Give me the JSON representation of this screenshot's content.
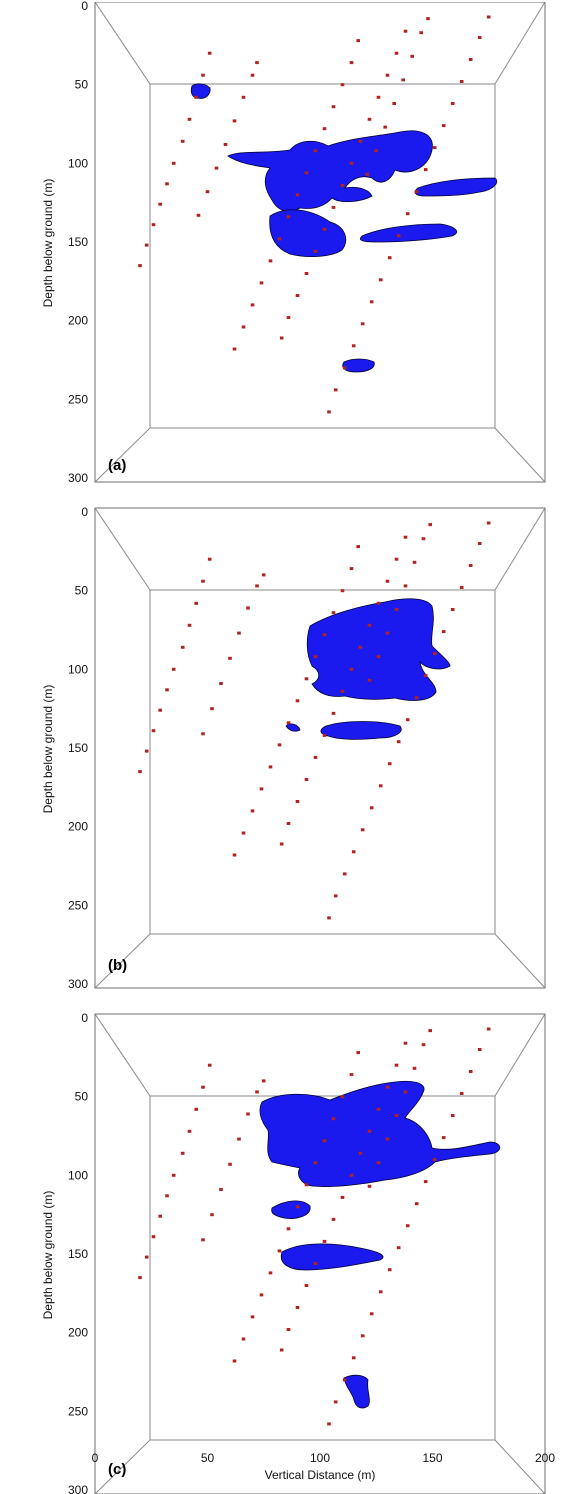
{
  "chart_data": [
    {
      "type": "scatter",
      "panel_label": "(a)",
      "ylabel": "Depth below ground (m)",
      "xlabel": "",
      "ylim": [
        300,
        0
      ],
      "y_ticks": [
        "0",
        "50",
        "100",
        "150",
        "200",
        "250",
        "300"
      ],
      "x_ticks": [],
      "series": [
        {
          "points": [
            [
              20,
              165
            ],
            [
              23,
              152
            ],
            [
              26,
              139
            ],
            [
              29,
              126
            ],
            [
              32,
              113
            ],
            [
              35,
              100
            ],
            [
              39,
              86
            ],
            [
              42,
              72
            ],
            [
              45,
              58
            ],
            [
              48,
              44
            ],
            [
              51,
              30
            ]
          ]
        },
        {
          "points": [
            [
              62,
              218
            ],
            [
              66,
              204
            ],
            [
              70,
              190
            ],
            [
              74,
              176
            ],
            [
              78,
              162
            ],
            [
              82,
              148
            ],
            [
              86,
              134
            ],
            [
              90,
              120
            ],
            [
              94,
              106
            ],
            [
              98,
              92
            ],
            [
              102,
              78
            ],
            [
              106,
              64
            ],
            [
              110,
              50
            ],
            [
              114,
              36
            ],
            [
              117,
              22
            ]
          ]
        },
        {
          "points": [
            [
              83,
              211
            ],
            [
              86,
              198
            ],
            [
              90,
              184
            ],
            [
              94,
              170
            ],
            [
              98,
              156
            ],
            [
              102,
              142
            ],
            [
              106,
              128
            ],
            [
              110,
              114
            ],
            [
              114,
              100
            ],
            [
              118,
              86
            ],
            [
              122,
              72
            ],
            [
              126,
              58
            ],
            [
              130,
              44
            ],
            [
              134,
              30
            ],
            [
              138,
              16
            ]
          ]
        },
        {
          "points": [
            [
              104,
              258
            ],
            [
              107,
              244
            ],
            [
              111,
              230
            ],
            [
              115,
              216
            ],
            [
              119,
              202
            ],
            [
              123,
              188
            ],
            [
              127,
              174
            ],
            [
              131,
              160
            ],
            [
              135,
              146
            ],
            [
              139,
              132
            ],
            [
              143,
              118
            ],
            [
              147,
              104
            ],
            [
              151,
              90
            ],
            [
              155,
              76
            ],
            [
              159,
              62
            ],
            [
              163,
              48
            ],
            [
              167,
              34
            ],
            [
              171,
              20
            ],
            [
              175,
              7
            ]
          ]
        },
        {
          "points": [
            [
              46,
              133
            ],
            [
              50,
              118
            ],
            [
              54,
              103
            ],
            [
              58,
              88
            ],
            [
              62,
              73
            ],
            [
              66,
              58
            ],
            [
              70,
              44
            ],
            [
              72,
              36
            ]
          ]
        },
        {
          "points": [
            [
              121,
              107
            ],
            [
              125,
              92
            ],
            [
              129,
              77
            ],
            [
              133,
              62
            ],
            [
              137,
              47
            ],
            [
              141,
              32
            ],
            [
              145,
              17
            ],
            [
              148,
              8
            ]
          ]
        }
      ]
    },
    {
      "type": "scatter",
      "panel_label": "(b)",
      "ylabel": "Depth below ground (m)",
      "xlabel": "",
      "ylim": [
        300,
        0
      ],
      "y_ticks": [
        "0",
        "50",
        "100",
        "150",
        "200",
        "250",
        "300"
      ],
      "x_ticks": [],
      "series": [
        {
          "points": [
            [
              20,
              165
            ],
            [
              23,
              152
            ],
            [
              26,
              139
            ],
            [
              29,
              126
            ],
            [
              32,
              113
            ],
            [
              35,
              100
            ],
            [
              39,
              86
            ],
            [
              42,
              72
            ],
            [
              45,
              58
            ],
            [
              48,
              44
            ],
            [
              51,
              30
            ]
          ]
        },
        {
          "points": [
            [
              62,
              218
            ],
            [
              66,
              204
            ],
            [
              70,
              190
            ],
            [
              74,
              176
            ],
            [
              78,
              162
            ],
            [
              82,
              148
            ],
            [
              86,
              134
            ],
            [
              90,
              120
            ],
            [
              94,
              106
            ],
            [
              98,
              92
            ],
            [
              102,
              78
            ],
            [
              106,
              64
            ],
            [
              110,
              50
            ],
            [
              114,
              36
            ],
            [
              117,
              22
            ]
          ]
        },
        {
          "points": [
            [
              83,
              211
            ],
            [
              86,
              198
            ],
            [
              90,
              184
            ],
            [
              94,
              170
            ],
            [
              98,
              156
            ],
            [
              102,
              142
            ],
            [
              106,
              128
            ],
            [
              110,
              114
            ],
            [
              114,
              100
            ],
            [
              118,
              86
            ],
            [
              122,
              72
            ],
            [
              126,
              58
            ],
            [
              130,
              44
            ],
            [
              134,
              30
            ],
            [
              138,
              16
            ]
          ]
        },
        {
          "points": [
            [
              104,
              258
            ],
            [
              107,
              244
            ],
            [
              111,
              230
            ],
            [
              115,
              216
            ],
            [
              119,
              202
            ],
            [
              123,
              188
            ],
            [
              127,
              174
            ],
            [
              131,
              160
            ],
            [
              135,
              146
            ],
            [
              139,
              132
            ],
            [
              143,
              118
            ],
            [
              147,
              104
            ],
            [
              151,
              90
            ],
            [
              155,
              76
            ],
            [
              159,
              62
            ],
            [
              163,
              48
            ],
            [
              167,
              34
            ],
            [
              171,
              20
            ],
            [
              175,
              7
            ]
          ]
        },
        {
          "points": [
            [
              48,
              141
            ],
            [
              52,
              125
            ],
            [
              56,
              109
            ],
            [
              60,
              93
            ],
            [
              64,
              77
            ],
            [
              68,
              61
            ],
            [
              72,
              47
            ],
            [
              75,
              40
            ]
          ]
        },
        {
          "points": [
            [
              122,
              107
            ],
            [
              126,
              92
            ],
            [
              130,
              77
            ],
            [
              134,
              62
            ],
            [
              138,
              47
            ],
            [
              142,
              32
            ],
            [
              146,
              17
            ],
            [
              149,
              8
            ]
          ]
        }
      ]
    },
    {
      "type": "scatter",
      "panel_label": "(c)",
      "ylabel": "Depth below ground (m)",
      "xlabel": "Vertical Distance (m)",
      "ylim": [
        300,
        0
      ],
      "xlim": [
        0,
        200
      ],
      "y_ticks": [
        "0",
        "50",
        "100",
        "150",
        "200",
        "250",
        "300"
      ],
      "x_ticks": [
        "0",
        "50",
        "100",
        "150",
        "200"
      ],
      "series": [
        {
          "points": [
            [
              20,
              165
            ],
            [
              23,
              152
            ],
            [
              26,
              139
            ],
            [
              29,
              126
            ],
            [
              32,
              113
            ],
            [
              35,
              100
            ],
            [
              39,
              86
            ],
            [
              42,
              72
            ],
            [
              45,
              58
            ],
            [
              48,
              44
            ],
            [
              51,
              30
            ]
          ]
        },
        {
          "points": [
            [
              62,
              218
            ],
            [
              66,
              204
            ],
            [
              70,
              190
            ],
            [
              74,
              176
            ],
            [
              78,
              162
            ],
            [
              82,
              148
            ],
            [
              86,
              134
            ],
            [
              90,
              120
            ],
            [
              94,
              106
            ],
            [
              98,
              92
            ],
            [
              102,
              78
            ],
            [
              106,
              64
            ],
            [
              110,
              50
            ],
            [
              114,
              36
            ],
            [
              117,
              22
            ]
          ]
        },
        {
          "points": [
            [
              83,
              211
            ],
            [
              86,
              198
            ],
            [
              90,
              184
            ],
            [
              94,
              170
            ],
            [
              98,
              156
            ],
            [
              102,
              142
            ],
            [
              106,
              128
            ],
            [
              110,
              114
            ],
            [
              114,
              100
            ],
            [
              118,
              86
            ],
            [
              122,
              72
            ],
            [
              126,
              58
            ],
            [
              130,
              44
            ],
            [
              134,
              30
            ],
            [
              138,
              16
            ]
          ]
        },
        {
          "points": [
            [
              104,
              258
            ],
            [
              107,
              244
            ],
            [
              111,
              230
            ],
            [
              115,
              216
            ],
            [
              119,
              202
            ],
            [
              123,
              188
            ],
            [
              127,
              174
            ],
            [
              131,
              160
            ],
            [
              135,
              146
            ],
            [
              139,
              132
            ],
            [
              143,
              118
            ],
            [
              147,
              104
            ],
            [
              151,
              90
            ],
            [
              155,
              76
            ],
            [
              159,
              62
            ],
            [
              163,
              48
            ],
            [
              167,
              34
            ],
            [
              171,
              20
            ],
            [
              175,
              7
            ]
          ]
        },
        {
          "points": [
            [
              48,
              141
            ],
            [
              52,
              125
            ],
            [
              56,
              109
            ],
            [
              60,
              93
            ],
            [
              64,
              77
            ],
            [
              68,
              61
            ],
            [
              72,
              47
            ],
            [
              75,
              40
            ]
          ]
        },
        {
          "points": [
            [
              122,
              107
            ],
            [
              126,
              92
            ],
            [
              130,
              77
            ],
            [
              134,
              62
            ],
            [
              138,
              47
            ],
            [
              142,
              32
            ],
            [
              146,
              17
            ],
            [
              149,
              8
            ]
          ]
        }
      ]
    }
  ],
  "colors": {
    "points": "#b22222",
    "isosurface": "#1a1aee",
    "isosurface_edge": "#000033",
    "box_lines": "#8a8a8a"
  }
}
